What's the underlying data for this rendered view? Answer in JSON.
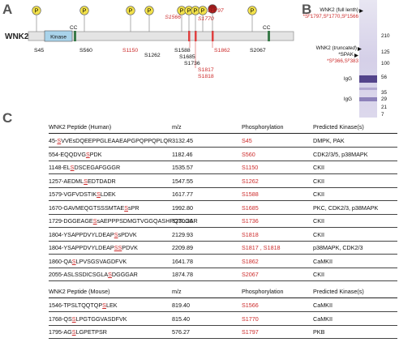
{
  "panels": {
    "a": "A",
    "b": "B",
    "c": "C"
  },
  "diagram": {
    "protein": "WNK2",
    "domains": {
      "kinase": "Kinase",
      "cc": "CC"
    },
    "p_label": "P",
    "sites_black": [
      "S45",
      "S560",
      "S1262",
      "S1588",
      "S1685",
      "S1736",
      "S2067"
    ],
    "sites_red": [
      "S1150",
      "S1566",
      "S1770",
      "S1797",
      "S1862",
      "S1817",
      "S1818"
    ]
  },
  "gel": {
    "label_full": "WNK2 (full lenth)",
    "label_full_sites": "*Sᴾ1797,Sᴾ1770,Sᴾ1566",
    "label_trunc_prefix": "WNK2 (",
    "label_trunc_italic": "truncated",
    "label_trunc_suffix": ")",
    "label_spak": "*SPAK",
    "label_spak_sites": "*Sᴾ366,Sᴾ383",
    "igg1": "IgG",
    "igg2": "IgG",
    "markers": [
      "210",
      "125",
      "100",
      "56",
      "35",
      "29",
      "21",
      "7"
    ]
  },
  "table_human": {
    "headers": [
      "WNK2 Peptide (Human)",
      "m/z",
      "Phosphorylation",
      "Predicted Kinase(s)"
    ],
    "rows": [
      {
        "pre": "45-",
        "site": "S",
        "post": "VVEsDQEEPPGLEAAEAPGPQPPQPLQR",
        "mz": "3132.45",
        "phos": "S45",
        "kinase": "DMPK, PAK"
      },
      {
        "pre": "554-EQQDVG",
        "site": "S",
        "post": "PDK",
        "mz": "1182.46",
        "phos": "S560",
        "kinase": "CDK2/3/5, p38MAPK"
      },
      {
        "pre": "1148-EL",
        "site": "S",
        "post": "DSCEGAFGGGR",
        "mz": "1535.57",
        "phos": "S1150",
        "kinase": "CKII"
      },
      {
        "pre": "1257-AEDML",
        "site": "S",
        "post": "EDTDADR",
        "mz": "1547.55",
        "phos": "S1262",
        "kinase": "CKII"
      },
      {
        "pre": "1579-VGFVDSTIK",
        "site": "S",
        "post": "LDEK",
        "mz": "1617.77",
        "phos": "S1588",
        "kinase": "CKII"
      },
      {
        "pre": "1670-GAVMEQGTSSSMTAE",
        "site": "S",
        "post": "sPR",
        "mz": "1992.80",
        "phos": "S1685",
        "kinase": "PKC, CDK2/3, p38MAPK"
      },
      {
        "pre": "1729-DGGEAGE",
        "site": "S",
        "post": "sAEPPPSDMGTVGGQASHPQTLGAR",
        "mz": "3230.36",
        "phos": "S1736",
        "kinase": "CKII"
      },
      {
        "pre": "1804-YSAPPDVYLDEAP",
        "site": "S",
        "post": "sPDVK",
        "mz": "2129.93",
        "phos": "S1818",
        "kinase": "CKII"
      },
      {
        "pre": "1804-YSAPPDVYLDEAP",
        "site": "SS",
        "post": "PDVK",
        "mz": "2209.89",
        "phos": "S1817 , S1818",
        "kinase": "p38MAPK, CDK2/3"
      },
      {
        "pre": "1860-QA",
        "site": "S",
        "post": "LPVSGSVAGDFVK",
        "mz": "1641.78",
        "phos": "S1862",
        "kinase": "CaMKII"
      },
      {
        "pre": "2055-ASLSSDICSGLA",
        "site": "S",
        "post": "DGGGAR",
        "mz": "1874.78",
        "phos": "S2067",
        "kinase": "CKII"
      }
    ]
  },
  "table_mouse": {
    "headers": [
      "WNK2 Peptide (Mouse)",
      "m/z",
      "Phosphorylation",
      "Predicted Kinase(s)"
    ],
    "rows": [
      {
        "pre": "1546-TPSLTQQTQP",
        "site": "S",
        "post": "LEK",
        "mz": "819.40",
        "phos": "S1566",
        "kinase": "CaMKII"
      },
      {
        "pre": "1768-QS",
        "site": "S",
        "post": "LPGTGGVASDFVK",
        "mz": "815.40",
        "phos": "S1770",
        "kinase": "CaMKII"
      },
      {
        "pre": "1795-AG",
        "site": "S",
        "post": "LGPETPSR",
        "mz": "576.27",
        "phos": "S1797",
        "kinase": "PKB"
      }
    ]
  }
}
